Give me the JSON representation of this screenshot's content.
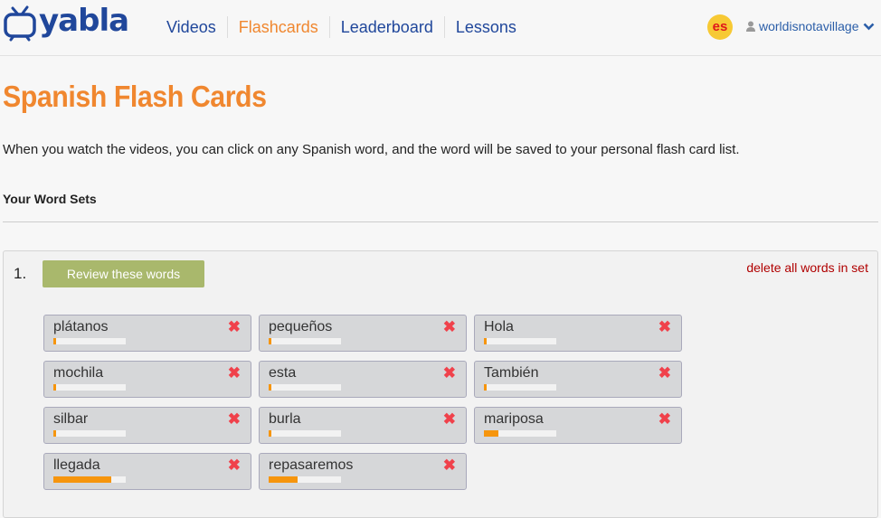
{
  "header": {
    "logo": "yabla",
    "nav": [
      {
        "label": "Videos",
        "active": false
      },
      {
        "label": "Flashcards",
        "active": true
      },
      {
        "label": "Leaderboard",
        "active": false
      },
      {
        "label": "Lessons",
        "active": false
      }
    ],
    "language_badge": "es",
    "username": "worldisnotavillage"
  },
  "page": {
    "title": "Spanish Flash Cards",
    "description": "When you watch the videos, you can click on any Spanish word, and the word will be saved to your personal flash card list.",
    "section_title": "Your Word Sets"
  },
  "word_set": {
    "number": "1.",
    "review_label": "Review these words",
    "delete_all_label": "delete all words in set",
    "words": [
      {
        "word": "plátanos",
        "progress": 4
      },
      {
        "word": "pequeños",
        "progress": 4
      },
      {
        "word": "Hola",
        "progress": 4
      },
      {
        "word": "mochila",
        "progress": 4
      },
      {
        "word": "esta",
        "progress": 4
      },
      {
        "word": "También",
        "progress": 4
      },
      {
        "word": "silbar",
        "progress": 4
      },
      {
        "word": "burla",
        "progress": 4
      },
      {
        "word": "mariposa",
        "progress": 20
      },
      {
        "word": "llegada",
        "progress": 80
      },
      {
        "word": "repasaremos",
        "progress": 40
      }
    ]
  },
  "colors": {
    "brand": "#20479b",
    "accent": "#f0872f",
    "review": "#a9b86c",
    "delete": "#f0414b",
    "progress": "#f6950d"
  }
}
